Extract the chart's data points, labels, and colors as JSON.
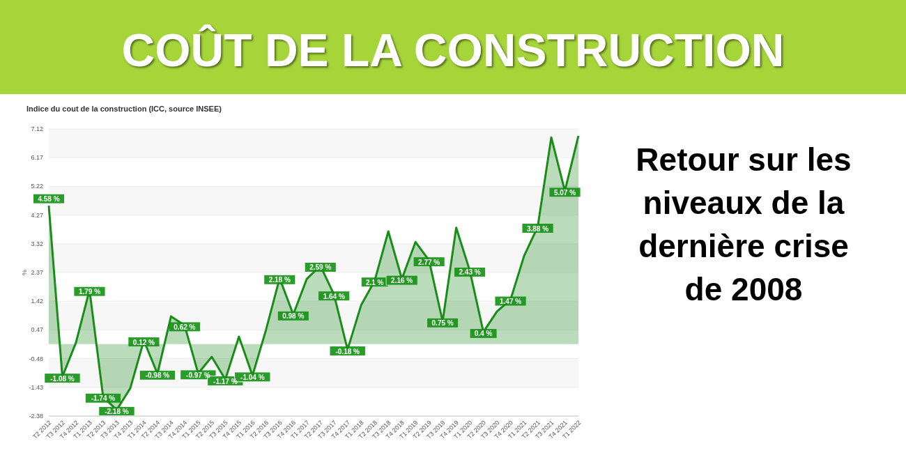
{
  "chart_data": {
    "type": "area",
    "title": "COÛT DE LA CONSTRUCTION",
    "subtitle": "Indice du cout de la construction (ICC, source INSEE)",
    "ylabel": "%",
    "annotations": [
      "Retour sur les niveaux de la dernière crise de 2008"
    ],
    "categories": [
      "T2 2012",
      "T3 2012",
      "T4 2012",
      "T1 2013",
      "T2 2013",
      "T3 2013",
      "T4 2013",
      "T1 2014",
      "T2 2014",
      "T3 2014",
      "T4 2014",
      "T1 2015",
      "T2 2015",
      "T3 2015",
      "T4 2015",
      "T1 2016",
      "T2 2016",
      "T3 2016",
      "T4 2016",
      "T1 2017",
      "T2 2017",
      "T3 2017",
      "T4 2017",
      "T1 2018",
      "T2 2018",
      "T3 2018",
      "T4 2018",
      "T1 2019",
      "T2 2019",
      "T3 2019",
      "T4 2019",
      "T1 2020",
      "T2 2020",
      "T3 2020",
      "T4 2020",
      "T1 2021",
      "T2 2021",
      "T3 2021",
      "T4 2021",
      "T1 2022"
    ],
    "series": [
      {
        "color": "#1a8c1a",
        "values": [
          4.58,
          -1.08,
          0.05,
          1.79,
          -1.74,
          -2.18,
          -1.46,
          0.12,
          -0.98,
          0.92,
          0.62,
          -0.97,
          -0.42,
          -1.17,
          0.25,
          -1.04,
          0.48,
          2.18,
          0.98,
          2.16,
          2.59,
          1.64,
          -0.18,
          1.29,
          2.1,
          3.73,
          2.16,
          3.38,
          2.77,
          0.75,
          3.85,
          2.43,
          0.4,
          1.08,
          1.47,
          2.92,
          3.88,
          6.84,
          5.07,
          6.89
        ],
        "value_labels": [
          "4.58 %",
          "-1.08 %",
          null,
          "1.79 %",
          "-1.74 %",
          "-2.18 %",
          null,
          "0.12 %",
          "-0.98 %",
          null,
          "0.62 %",
          "-0.97 %",
          null,
          "-1.17 %",
          null,
          "-1.04 %",
          null,
          "2.18 %",
          "0.98 %",
          null,
          "2.59 %",
          "1.64 %",
          "-0.18 %",
          null,
          "2.1 %",
          null,
          "2.16 %",
          null,
          "2.77 %",
          "0.75 %",
          null,
          "2.43 %",
          "0.4 %",
          null,
          "1.47 %",
          null,
          "3.88 %",
          null,
          "5.07 %",
          null
        ]
      }
    ],
    "ylim": [
      -2.38,
      7.12
    ],
    "yticks": [
      7.12,
      6.17,
      5.22,
      4.27,
      3.32,
      2.37,
      1.42,
      0.47,
      -0.48,
      -1.43,
      -2.38
    ],
    "grid": "y",
    "legend": false
  }
}
